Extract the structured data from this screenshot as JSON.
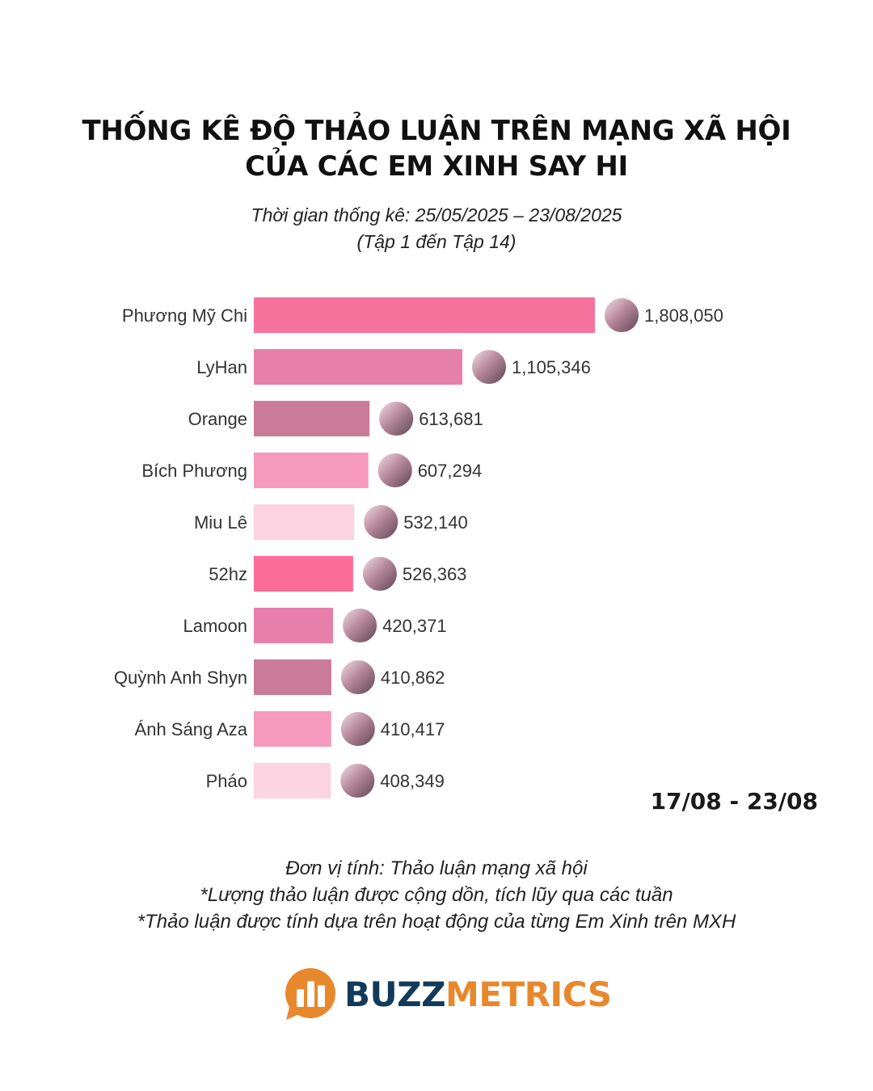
{
  "header": {
    "title_line1": "THỐNG KÊ ĐỘ THẢO LUẬN TRÊN MẠNG XÃ HỘI",
    "title_line2": "CỦA CÁC EM XINH SAY HI",
    "subtitle_line1": "Thời gian thống kê: 25/05/2025 – 23/08/2025",
    "subtitle_line2": "(Tập 1 đến Tập 14)"
  },
  "period_label": "17/08 - 23/08",
  "footer": {
    "note1": "Đơn vị tính: Thảo luận mạng xã hội",
    "note2": "*Lượng thảo luận được cộng dồn, tích lũy qua các tuần",
    "note3": "*Thảo luận được tính dựa trên hoạt động của từng Em Xinh trên MXH"
  },
  "logo": {
    "text_buzz": "BUZZ",
    "text_metrics": "METRICS"
  },
  "colors": {
    "logo_orange": "#e8882d",
    "logo_navy": "#123a5a"
  },
  "chart_data": {
    "type": "bar",
    "orientation": "horizontal",
    "title": "THỐNG KÊ ĐỘ THẢO LUẬN TRÊN MẠNG XÃ HỘI CỦA CÁC EM XINH SAY HI",
    "xlabel": "",
    "ylabel": "",
    "xlim": [
      0,
      1808050
    ],
    "categories": [
      "Phương Mỹ Chi",
      "LyHan",
      "Orange",
      "Bích Phương",
      "Miu Lê",
      "52hz",
      "Lamoon",
      "Quỳnh Anh Shyn",
      "Ánh Sáng Aza",
      "Pháo"
    ],
    "values": [
      1808050,
      1105346,
      613681,
      607294,
      532140,
      526363,
      420371,
      410862,
      410417,
      408349
    ],
    "value_labels": [
      "1,808,050",
      "1,105,346",
      "613,681",
      "607,294",
      "532,140",
      "526,363",
      "420,371",
      "410,862",
      "410,417",
      "408,349"
    ],
    "bar_colors": [
      "#f5729c",
      "#e77fab",
      "#c97b97",
      "#f599bd",
      "#fcd3e1",
      "#fb6d98",
      "#e77fab",
      "#c97b97",
      "#f599bd",
      "#fcd3e1"
    ],
    "grid": false
  }
}
